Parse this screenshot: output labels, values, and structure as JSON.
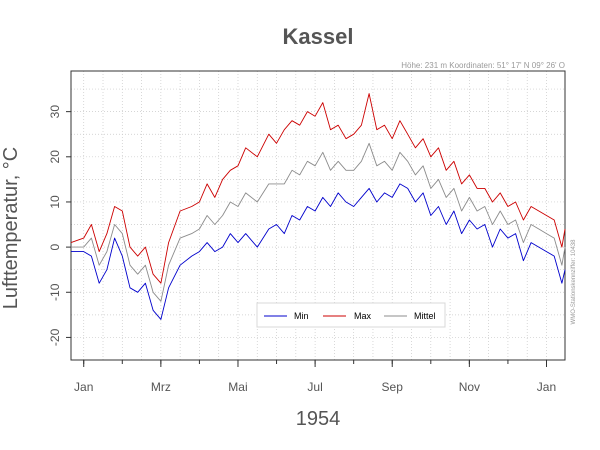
{
  "chart_data": {
    "type": "line",
    "title": "Kassel",
    "station_info": "Höhe: 231 m   Koordinaten: 51° 17' N  09° 26' O",
    "side_note": "WMO-Stationskennziffer: 10438",
    "xlabel": "1954",
    "ylabel": "Lufttemperatur, °C",
    "ylim": [
      -25,
      39
    ],
    "yticks": [
      -20,
      -10,
      0,
      10,
      20,
      30
    ],
    "x_range_months": [
      -0.33,
      12.48
    ],
    "month_ticks": [
      {
        "label": "Jan",
        "month": 0
      },
      {
        "label": "Mrz",
        "month": 2
      },
      {
        "label": "Mai",
        "month": 4
      },
      {
        "label": "Jul",
        "month": 6
      },
      {
        "label": "Sep",
        "month": 8
      },
      {
        "label": "Nov",
        "month": 10
      },
      {
        "label": "Jan",
        "month": 12
      }
    ],
    "grid": true,
    "legend_position": "bottom-center",
    "x_months": [
      -0.33,
      0,
      0.2,
      0.4,
      0.6,
      0.8,
      1.0,
      1.2,
      1.4,
      1.6,
      1.8,
      2.0,
      2.2,
      2.5,
      2.8,
      3.0,
      3.2,
      3.4,
      3.6,
      3.8,
      4.0,
      4.2,
      4.5,
      4.8,
      5.0,
      5.2,
      5.4,
      5.6,
      5.8,
      6.0,
      6.2,
      6.4,
      6.6,
      6.8,
      7.0,
      7.2,
      7.4,
      7.6,
      7.8,
      8.0,
      8.2,
      8.4,
      8.6,
      8.8,
      9.0,
      9.2,
      9.4,
      9.6,
      9.8,
      10.0,
      10.2,
      10.4,
      10.6,
      10.8,
      11.0,
      11.2,
      11.4,
      11.6,
      11.8,
      12.0,
      12.2,
      12.4,
      12.48
    ],
    "series": [
      {
        "name": "Min",
        "color": "#0000cc",
        "values": [
          -1,
          -1,
          -2,
          -8,
          -5,
          2,
          -2,
          -9,
          -10,
          -8,
          -14,
          -16,
          -9,
          -4,
          -2,
          -1,
          1,
          -1,
          0,
          3,
          1,
          3,
          0,
          4,
          5,
          3,
          7,
          6,
          9,
          8,
          11,
          9,
          12,
          10,
          9,
          11,
          13,
          10,
          12,
          11,
          14,
          13,
          10,
          12,
          7,
          9,
          5,
          8,
          3,
          6,
          4,
          5,
          0,
          4,
          2,
          3,
          -3,
          1,
          0,
          -1,
          -2,
          -8,
          -5
        ]
      },
      {
        "name": "Max",
        "color": "#cc0000",
        "values": [
          1,
          2,
          5,
          -1,
          3,
          9,
          8,
          0,
          -2,
          0,
          -6,
          -8,
          1,
          8,
          9,
          10,
          14,
          11,
          15,
          17,
          18,
          22,
          20,
          25,
          23,
          26,
          28,
          27,
          30,
          29,
          32,
          26,
          27,
          24,
          25,
          27,
          34,
          26,
          27,
          24,
          28,
          25,
          22,
          24,
          20,
          22,
          17,
          19,
          14,
          16,
          13,
          13,
          10,
          12,
          9,
          10,
          6,
          9,
          8,
          7,
          6,
          0,
          4
        ]
      },
      {
        "name": "Mittel",
        "color": "#8c8c8c",
        "values": [
          0,
          0,
          2,
          -4,
          -1,
          5,
          3,
          -4,
          -6,
          -4,
          -10,
          -12,
          -4,
          2,
          3,
          4,
          7,
          5,
          7,
          10,
          9,
          12,
          10,
          14,
          14,
          14,
          17,
          16,
          19,
          18,
          21,
          17,
          19,
          17,
          17,
          19,
          23,
          18,
          19,
          17,
          21,
          19,
          16,
          18,
          13,
          15,
          11,
          13,
          8,
          11,
          8,
          9,
          5,
          8,
          5,
          6,
          1,
          5,
          4,
          3,
          2,
          -4,
          0
        ]
      }
    ]
  }
}
